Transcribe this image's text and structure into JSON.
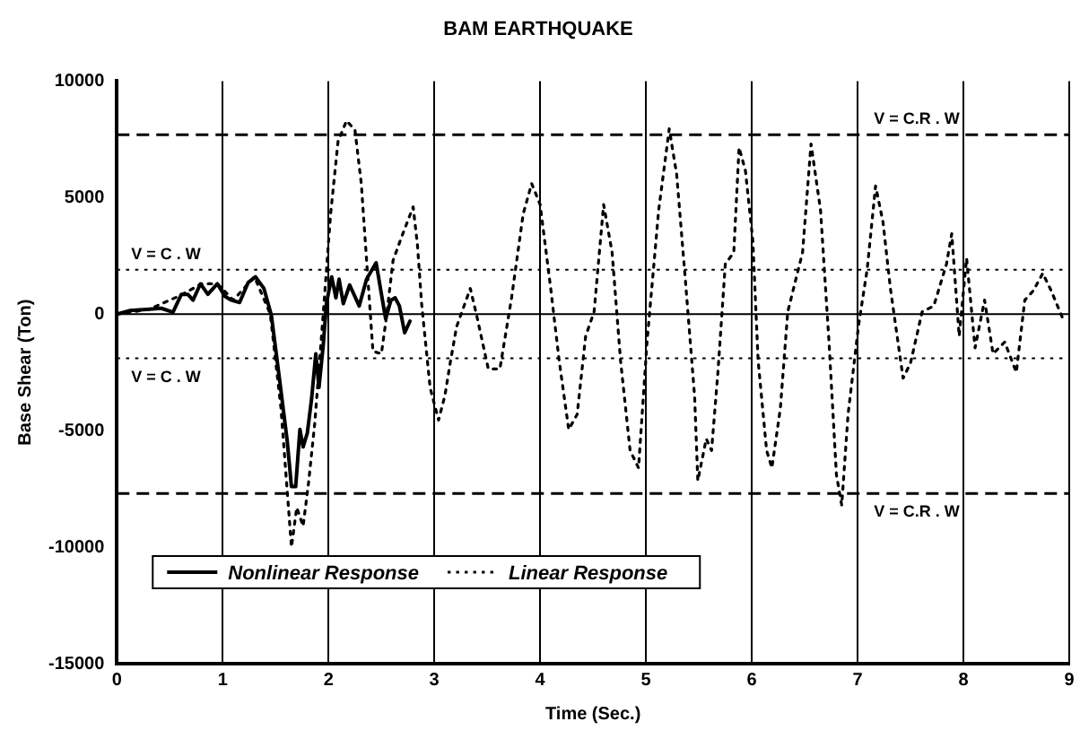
{
  "chart_data": {
    "type": "line",
    "title": "BAM EARTHQUAKE",
    "xlabel": "Time (Sec.)",
    "ylabel": "Base Shear (Ton)",
    "xlim": [
      0,
      9
    ],
    "xticks": [
      0,
      1,
      2,
      3,
      4,
      5,
      6,
      7,
      8,
      9
    ],
    "ylim": [
      -15000,
      10000
    ],
    "yticks": [
      -15000,
      -10000,
      -5000,
      0,
      5000,
      10000
    ],
    "grid": "x",
    "legend": "bottom left",
    "marker": "none",
    "ref_lines": [
      {
        "axis": "y",
        "value": 7700,
        "label": "V = C.R . W",
        "line_style": "dashed",
        "color": "#000000"
      },
      {
        "axis": "y",
        "value": 1900,
        "label": "V = C . W",
        "line_style": "dotted",
        "color": "#000000"
      },
      {
        "axis": "y",
        "value": 0,
        "label": null,
        "line_style": "solid",
        "color": "#000000"
      },
      {
        "axis": "y",
        "value": -1900,
        "label": "V = C . W",
        "line_style": "dotted",
        "color": "#000000"
      },
      {
        "axis": "y",
        "value": -7700,
        "label": "V = C.R . W",
        "line_style": "dashed",
        "color": "#000000"
      }
    ],
    "series": [
      {
        "name": "Nonlinear Response",
        "color": "#000000",
        "line_style": "solid",
        "x": [
          0,
          0.12,
          0.28,
          0.42,
          0.53,
          0.61,
          0.67,
          0.72,
          0.79,
          0.86,
          0.95,
          1.02,
          1.08,
          1.16,
          1.24,
          1.31,
          1.39,
          1.46,
          1.54,
          1.61,
          1.65,
          1.69,
          1.73,
          1.76,
          1.8,
          1.84,
          1.88,
          1.91,
          1.95,
          1.98,
          2.03,
          2.07,
          2.1,
          2.14,
          2.2,
          2.29,
          2.36,
          2.45,
          2.54,
          2.59,
          2.63,
          2.67,
          2.72,
          2.77
        ],
        "values": [
          0,
          150,
          200,
          250,
          80,
          850,
          850,
          600,
          1300,
          850,
          1300,
          770,
          600,
          500,
          1350,
          1600,
          1100,
          -50,
          -2900,
          -5450,
          -7400,
          -7400,
          -4950,
          -5700,
          -5100,
          -3650,
          -1700,
          -3150,
          -1350,
          450,
          1600,
          700,
          1500,
          450,
          1250,
          350,
          1500,
          2200,
          -200,
          600,
          700,
          350,
          -800,
          -300
        ]
      },
      {
        "name": "Linear Response",
        "color": "#000000",
        "line_style": "dotted",
        "x": [
          0,
          0.3,
          0.6,
          0.8,
          0.95,
          1.1,
          1.3,
          1.45,
          1.55,
          1.65,
          1.7,
          1.76,
          1.81,
          1.87,
          1.95,
          2.02,
          2.09,
          2.17,
          2.25,
          2.31,
          2.36,
          2.42,
          2.5,
          2.55,
          2.61,
          2.69,
          2.8,
          2.84,
          2.88,
          2.96,
          3.04,
          3.1,
          3.15,
          3.21,
          3.34,
          3.4,
          3.51,
          3.62,
          3.73,
          3.84,
          3.92,
          4,
          4.1,
          4.18,
          4.27,
          4.35,
          4.43,
          4.51,
          4.6,
          4.68,
          4.76,
          4.85,
          4.93,
          5.01,
          5.12,
          5.22,
          5.29,
          5.37,
          5.46,
          5.49,
          5.57,
          5.62,
          5.68,
          5.75,
          5.83,
          5.88,
          5.94,
          6.01,
          6.06,
          6.14,
          6.19,
          6.27,
          6.34,
          6.48,
          6.56,
          6.65,
          6.73,
          6.8,
          6.85,
          6.91,
          7.01,
          7.09,
          7.17,
          7.24,
          7.31,
          7.43,
          7.5,
          7.61,
          7.72,
          7.84,
          7.89,
          7.96,
          8.03,
          8.11,
          8.2,
          8.28,
          8.39,
          8.5,
          8.58,
          8.66,
          8.75,
          8.83,
          8.94
        ],
        "values": [
          0,
          200,
          800,
          1300,
          1300,
          600,
          1600,
          0,
          -4000,
          -10000,
          -8300,
          -9100,
          -7300,
          -4700,
          0,
          4300,
          7400,
          8300,
          7900,
          5600,
          2300,
          -1600,
          -1700,
          -50,
          2300,
          3300,
          4600,
          3000,
          450,
          -3150,
          -4550,
          -3500,
          -2100,
          -550,
          1100,
          -50,
          -2350,
          -2350,
          700,
          4300,
          5600,
          4700,
          1100,
          -2000,
          -4950,
          -4300,
          -950,
          100,
          4700,
          2650,
          -2000,
          -5850,
          -6600,
          -1200,
          4450,
          7950,
          6000,
          1600,
          -3550,
          -7150,
          -5350,
          -5850,
          -2500,
          2150,
          2650,
          7150,
          6150,
          3150,
          -2000,
          -5850,
          -6600,
          -4050,
          100,
          2650,
          7300,
          4450,
          -1200,
          -6900,
          -8200,
          -4300,
          -450,
          1900,
          5500,
          3950,
          1100,
          -2750,
          -2100,
          100,
          350,
          2150,
          3450,
          -950,
          2400,
          -1450,
          600,
          -1700,
          -1200,
          -2500,
          600,
          1000,
          1750,
          1000,
          -200
        ]
      }
    ]
  }
}
